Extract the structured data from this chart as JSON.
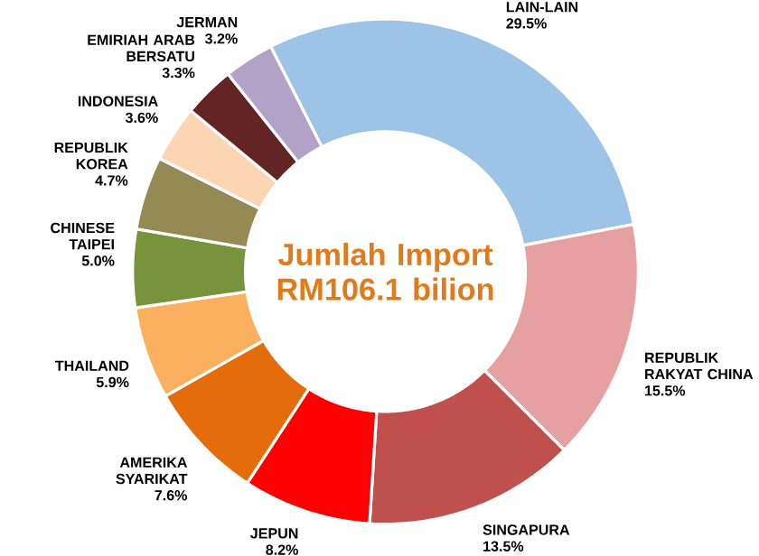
{
  "chart_data": {
    "type": "donut",
    "title": "Jumlah Import RM106.1 bilion",
    "categories": [
      "LAIN-LAIN",
      "REPUBLIK RAKYAT CHINA",
      "SINGAPURA",
      "JEPUN",
      "AMERIKA SYARIKAT",
      "THAILAND",
      "CHINESE TAIPEI",
      "REPUBLIK KOREA",
      "INDONESIA",
      "EMIRIAH ARAB BERSATU",
      "JERMAN"
    ],
    "values": [
      29.5,
      15.5,
      13.5,
      8.2,
      7.6,
      5.9,
      5.0,
      4.7,
      3.6,
      3.3,
      3.2
    ],
    "value_labels": [
      "29.5%",
      "15.5%",
      "13.5%",
      "8.2%",
      "7.6%",
      "5.9%",
      "5.0%",
      "4.7%",
      "3.6%",
      "3.3%",
      "3.2%"
    ],
    "colors": [
      "#9dc3e6",
      "#e6a0a0",
      "#c0504d",
      "#ff0000",
      "#e46c0a",
      "#fbb060",
      "#77933c",
      "#948a54",
      "#fcd5b5",
      "#632523",
      "#b3a2c7"
    ]
  }
}
